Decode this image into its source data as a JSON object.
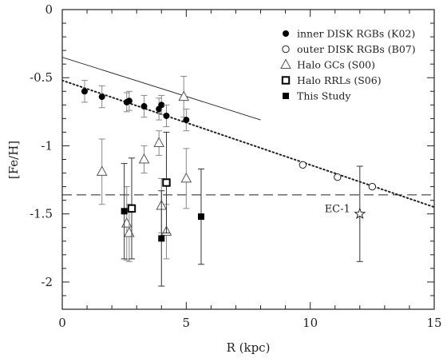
{
  "chart_data": {
    "type": "scatter",
    "xlabel": "R (kpc)",
    "ylabel": "[Fe/H]",
    "xlim": [
      0,
      15
    ],
    "ylim": [
      -2.2,
      0
    ],
    "x_ticks": [
      0,
      5,
      10,
      15
    ],
    "y_ticks": [
      0,
      -0.5,
      -1,
      -1.5,
      -2
    ],
    "x_tick_labels": [
      "0",
      "5",
      "10",
      "15"
    ],
    "y_tick_labels": [
      "0",
      "-0.5",
      "-1",
      "-1.5",
      "-2"
    ],
    "legend_position": "top-right",
    "series": [
      {
        "name": "inner DISK RGBs (K02)",
        "marker": "filled-circle",
        "points": [
          {
            "x": 0.9,
            "y": -0.6,
            "err": 0.08
          },
          {
            "x": 1.6,
            "y": -0.64,
            "err": 0.08
          },
          {
            "x": 2.6,
            "y": -0.68,
            "err": 0.07
          },
          {
            "x": 2.7,
            "y": -0.67,
            "err": 0.07
          },
          {
            "x": 3.3,
            "y": -0.71,
            "err": 0.08
          },
          {
            "x": 3.9,
            "y": -0.73,
            "err": 0.08
          },
          {
            "x": 4.0,
            "y": -0.7,
            "err": 0.07
          },
          {
            "x": 4.2,
            "y": -0.78,
            "err": 0.08
          },
          {
            "x": 5.0,
            "y": -0.81,
            "err": 0.08
          }
        ]
      },
      {
        "name": "outer DISK RGBs (B07)",
        "marker": "open-circle",
        "points": [
          {
            "x": 9.7,
            "y": -1.14
          },
          {
            "x": 11.1,
            "y": -1.23
          },
          {
            "x": 12.5,
            "y": -1.3
          }
        ]
      },
      {
        "name": "Halo GCs (S00)",
        "marker": "open-triangle",
        "points": [
          {
            "x": 1.6,
            "y": -1.19,
            "err": 0.24
          },
          {
            "x": 2.6,
            "y": -1.57,
            "err": 0.27
          },
          {
            "x": 2.7,
            "y": -1.64,
            "err": 0.21
          },
          {
            "x": 3.3,
            "y": -1.1,
            "err": 0.1
          },
          {
            "x": 3.9,
            "y": -0.98,
            "err": 0.09
          },
          {
            "x": 4.0,
            "y": -1.44,
            "err": 0.2
          },
          {
            "x": 4.2,
            "y": -1.63,
            "err": 0.2
          },
          {
            "x": 4.9,
            "y": -0.64,
            "err": 0.15
          },
          {
            "x": 5.0,
            "y": -1.24,
            "err": 0.22
          }
        ]
      },
      {
        "name": "Halo RRLs (S06)",
        "marker": "open-square",
        "points": [
          {
            "x": 2.8,
            "y": -1.46,
            "err": 0.37
          },
          {
            "x": 4.2,
            "y": -1.27,
            "err": 0.37
          }
        ]
      },
      {
        "name": "This Study",
        "marker": "filled-square",
        "points": [
          {
            "x": 2.5,
            "y": -1.48,
            "err": 0.35
          },
          {
            "x": 4.0,
            "y": -1.68,
            "err": 0.35
          },
          {
            "x": 5.6,
            "y": -1.52,
            "err": 0.35
          }
        ]
      },
      {
        "name": "EC-1",
        "marker": "open-star",
        "points": [
          {
            "x": 12.0,
            "y": -1.5,
            "err": 0.35
          }
        ]
      }
    ],
    "lines": [
      {
        "style": "solid",
        "x": [
          0,
          8
        ],
        "y": [
          -0.35,
          -0.81
        ]
      },
      {
        "style": "dotted",
        "x": [
          0,
          15
        ],
        "y": [
          -0.52,
          -1.45
        ]
      },
      {
        "style": "dashed",
        "x": [
          0,
          15
        ],
        "y": [
          -1.36,
          -1.36
        ]
      }
    ],
    "annotations": [
      {
        "text": "EC-1",
        "x": 12.0,
        "y": -1.5
      }
    ]
  }
}
